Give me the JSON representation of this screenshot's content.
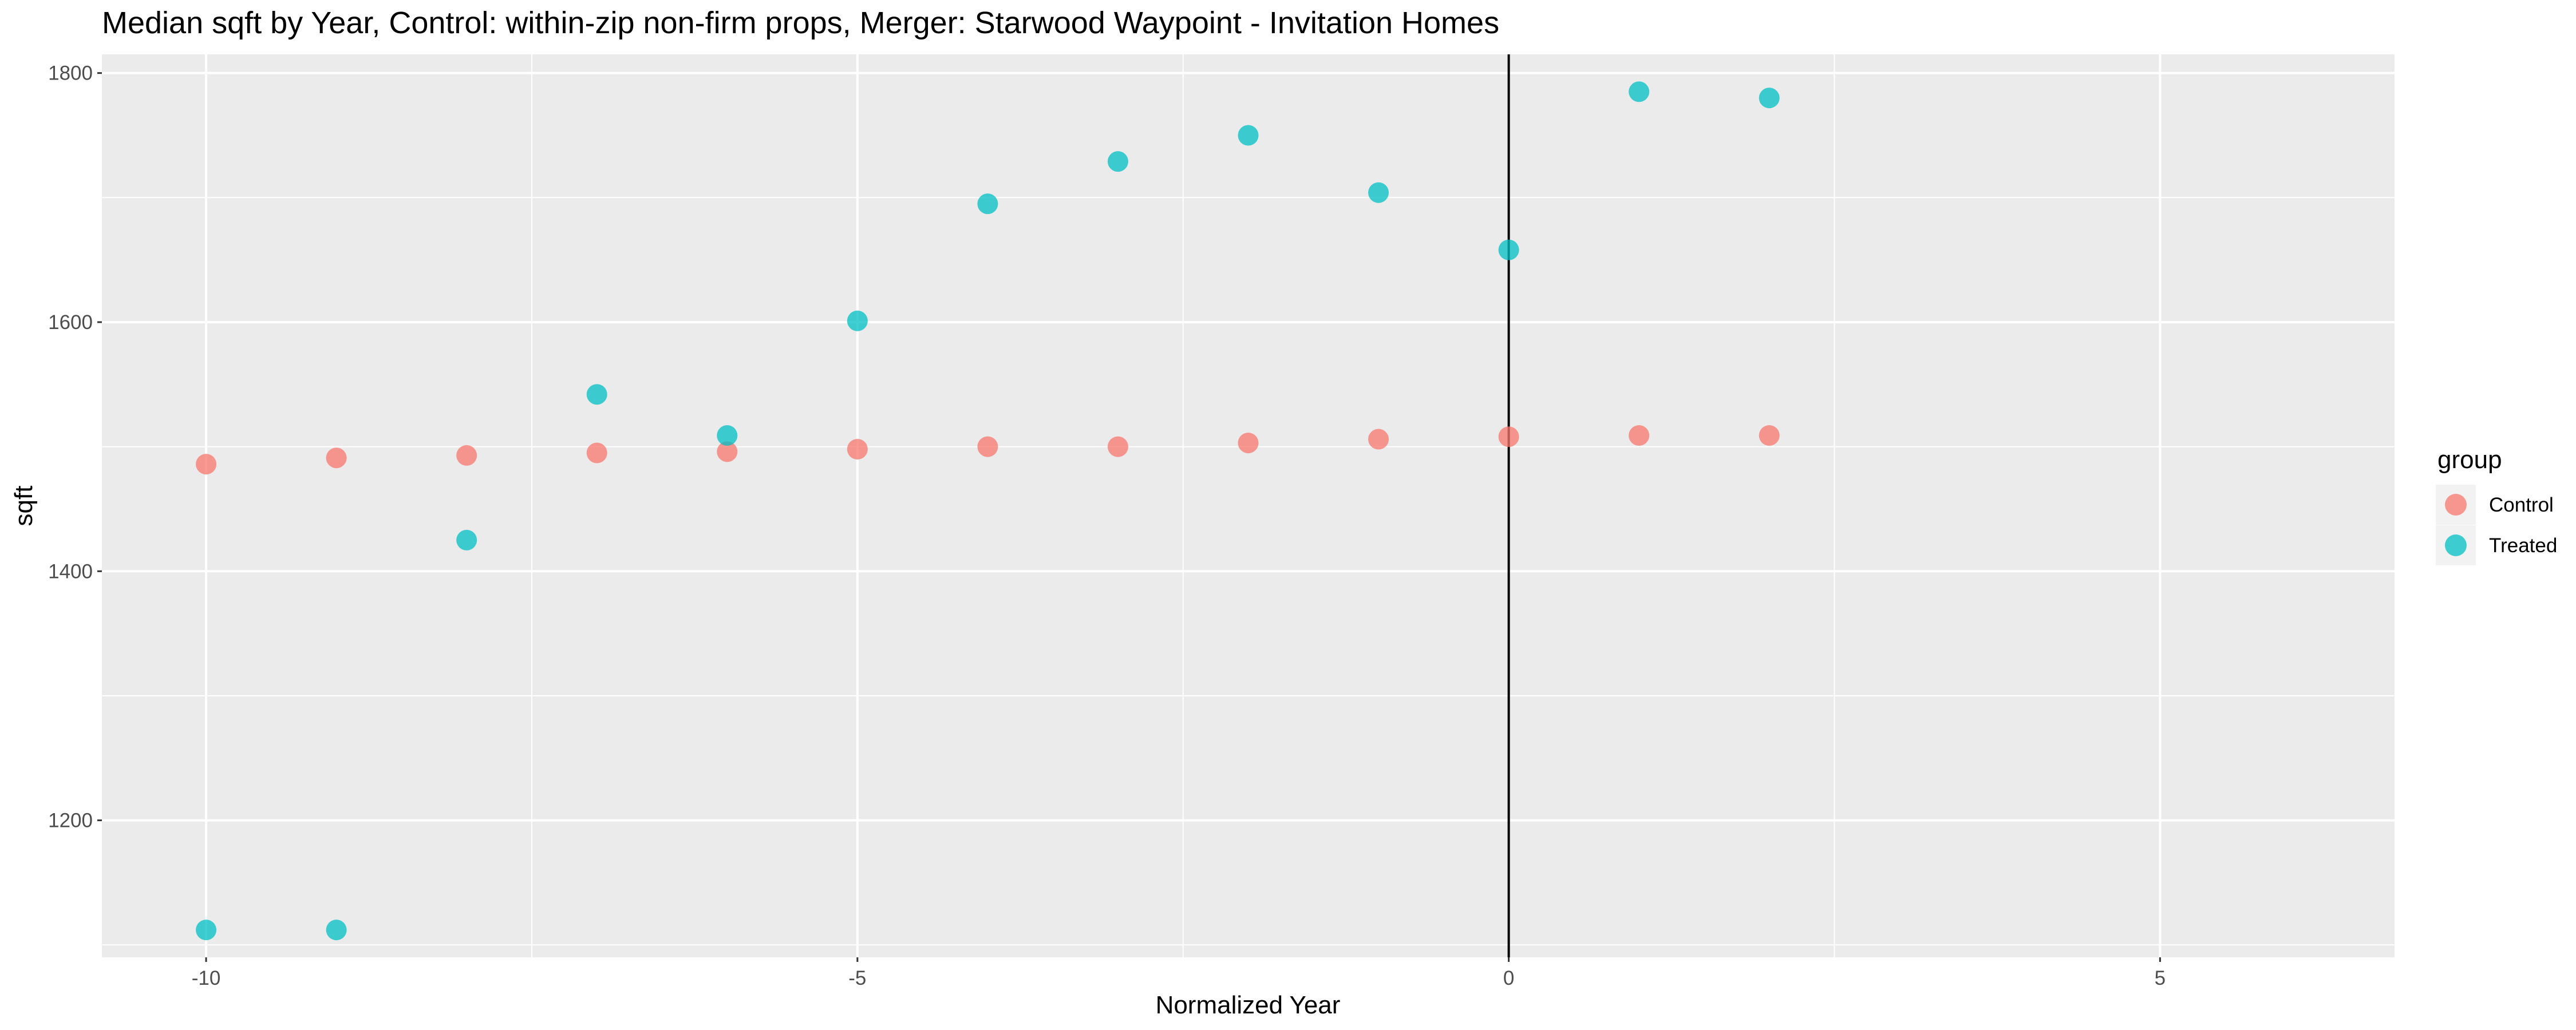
{
  "chart_data": {
    "type": "scatter",
    "title": "Median sqft by Year, Control: within-zip non-firm props, Merger: Starwood Waypoint - Invitation Homes",
    "xlabel": "Normalized Year",
    "ylabel": "sqft",
    "xlim": [
      -10.8,
      6.8
    ],
    "ylim": [
      1090,
      1815
    ],
    "x_ticks": [
      -10,
      -5,
      0,
      5
    ],
    "x_tick_labels": [
      "-10",
      "-5",
      "0",
      "5"
    ],
    "y_ticks": [
      1200,
      1400,
      1600,
      1800
    ],
    "y_tick_labels": [
      "1200",
      "1400",
      "1600",
      "1800"
    ],
    "grid": true,
    "vline_x": 0,
    "legend": {
      "title": "group",
      "position": "right"
    },
    "series": [
      {
        "name": "Control",
        "color": "#F8766D",
        "x": [
          -10,
          -9,
          -8,
          -7,
          -6,
          -5,
          -4,
          -3,
          -2,
          -1,
          0,
          1,
          2
        ],
        "y": [
          1486,
          1491,
          1493,
          1495,
          1496,
          1498,
          1500,
          1500,
          1503,
          1506,
          1508,
          1509,
          1509
        ]
      },
      {
        "name": "Treated",
        "color": "#00BFC4",
        "x": [
          -10,
          -9,
          -8,
          -7,
          -6,
          -5,
          -4,
          -3,
          -2,
          -1,
          0,
          1,
          2
        ],
        "y": [
          1112,
          1112,
          1425,
          1542,
          1509,
          1601,
          1695,
          1729,
          1750,
          1704,
          1658,
          1785,
          1780
        ]
      }
    ]
  }
}
